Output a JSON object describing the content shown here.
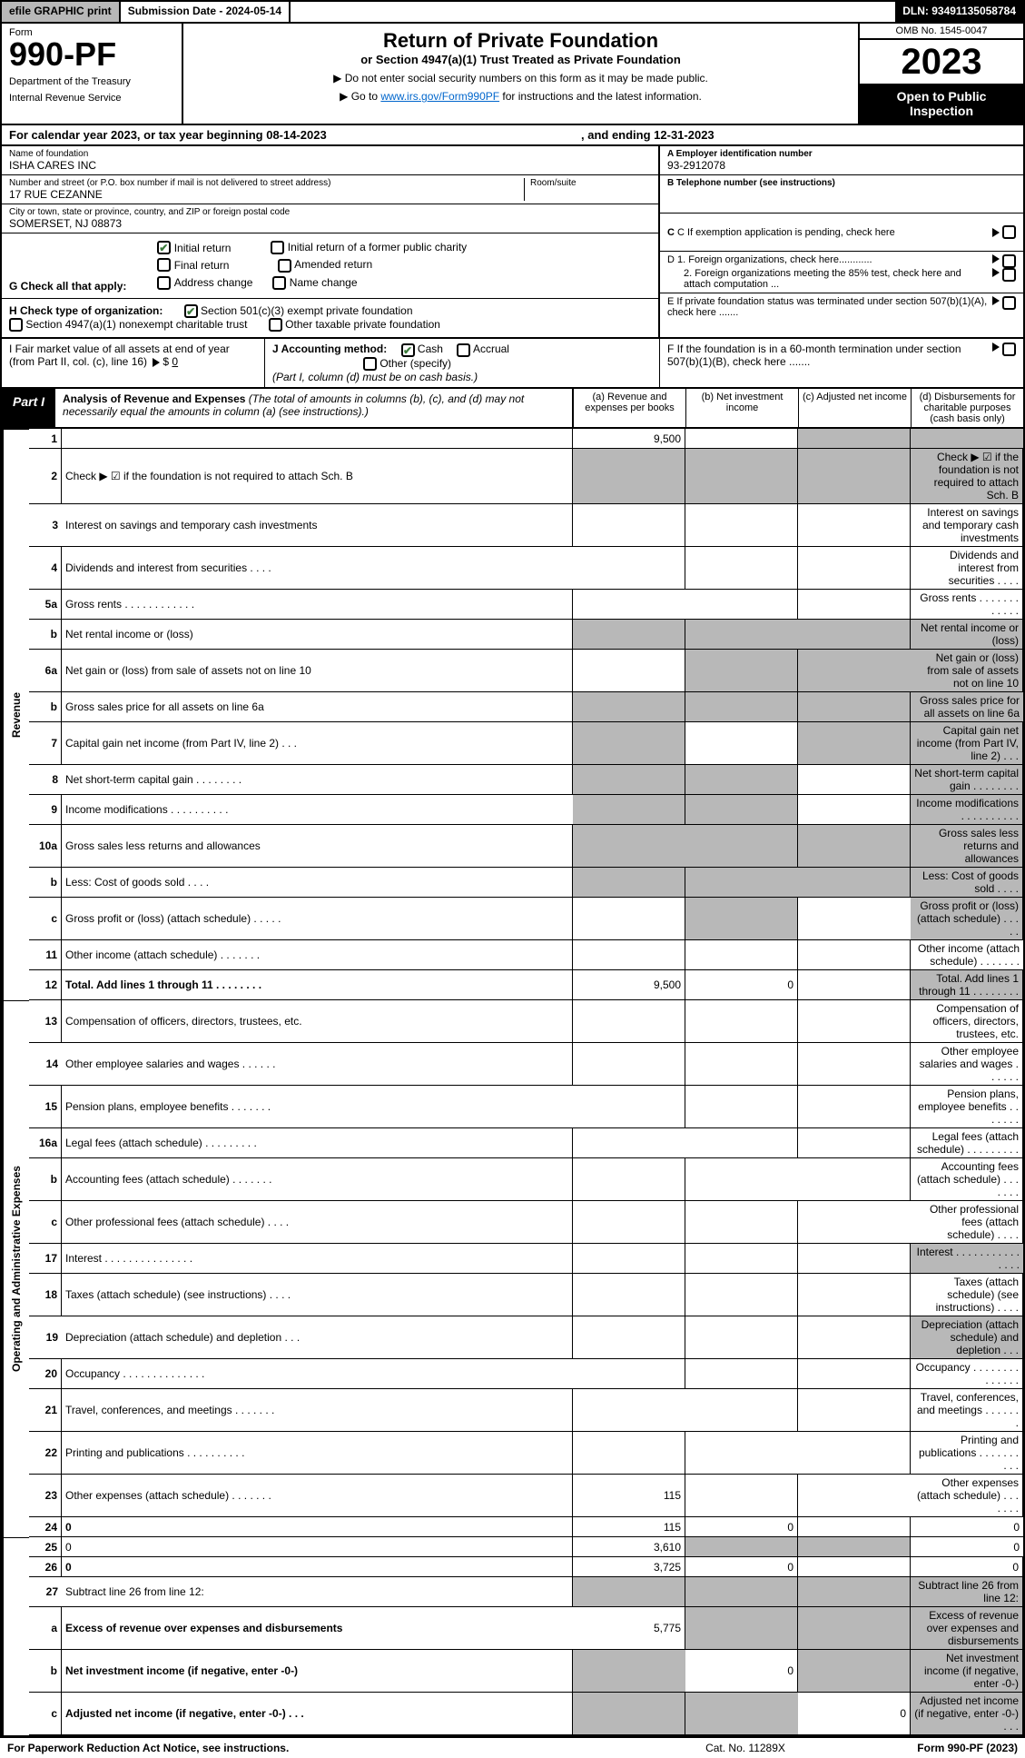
{
  "top": {
    "efile": "efile GRAPHIC print",
    "sub": "Submission Date - 2024-05-14",
    "dln": "DLN: 93491135058784"
  },
  "hdr": {
    "form": "Form",
    "num": "990-PF",
    "dept": "Department of the Treasury",
    "irs": "Internal Revenue Service",
    "title": "Return of Private Foundation",
    "sub": "or Section 4947(a)(1) Trust Treated as Private Foundation",
    "i1": "▶ Do not enter social security numbers on this form as it may be made public.",
    "i2_pre": "▶ Go to ",
    "i2_link": "www.irs.gov/Form990PF",
    "i2_post": " for instructions and the latest information.",
    "omb": "OMB No. 1545-0047",
    "year": "2023",
    "open": "Open to Public Inspection"
  },
  "period": {
    "a": "For calendar year 2023, or tax year beginning 08-14-2023",
    "b": ", and ending 12-31-2023"
  },
  "info": {
    "name_lbl": "Name of foundation",
    "name": "ISHA CARES INC",
    "addr_lbl": "Number and street (or P.O. box number if mail is not delivered to street address)",
    "addr": "17 RUE CEZANNE",
    "room_lbl": "Room/suite",
    "city_lbl": "City or town, state or province, country, and ZIP or foreign postal code",
    "city": "SOMERSET, NJ  08873",
    "ein_lbl": "A Employer identification number",
    "ein": "93-2912078",
    "tel_lbl": "B Telephone number (see instructions)",
    "c": "C If exemption application is pending, check here",
    "d1": "D 1. Foreign organizations, check here............",
    "d2": "2. Foreign organizations meeting the 85% test, check here and attach computation ...",
    "e": "E  If private foundation status was terminated under section 507(b)(1)(A), check here .......",
    "f": "F  If the foundation is in a 60-month termination under section 507(b)(1)(B), check here ......."
  },
  "g": {
    "lbl": "G Check all that apply:",
    "o1": "Initial return",
    "o2": "Initial return of a former public charity",
    "o3": "Final return",
    "o4": "Amended return",
    "o5": "Address change",
    "o6": "Name change"
  },
  "h": {
    "lbl": "H Check type of organization:",
    "o1": "Section 501(c)(3) exempt private foundation",
    "o2": "Section 4947(a)(1) nonexempt charitable trust",
    "o3": "Other taxable private foundation"
  },
  "i": {
    "lbl": "I Fair market value of all assets at end of year (from Part II, col. (c), line 16)",
    "val": "0"
  },
  "j": {
    "lbl": "J Accounting method:",
    "o1": "Cash",
    "o2": "Accrual",
    "o3": "Other (specify)",
    "note": "(Part I, column (d) must be on cash basis.)"
  },
  "part1": {
    "tag": "Part I",
    "title": "Analysis of Revenue and Expenses",
    "note": "(The total of amounts in columns (b), (c), and (d) may not necessarily equal the amounts in column (a) (see instructions).)",
    "ca": "(a)  Revenue and expenses per books",
    "cb": "(b)  Net investment income",
    "cc": "(c)  Adjusted net income",
    "cd": "(d)  Disbursements for charitable purposes (cash basis only)"
  },
  "rows": [
    {
      "n": "1",
      "d": "",
      "a": "9,500",
      "b": "",
      "c": "",
      "sa": false,
      "sb": false,
      "sc": true,
      "sd": true
    },
    {
      "n": "2",
      "d": "Check ▶ ☑ if the foundation is not required to attach Sch. B",
      "short": true,
      "sa": true,
      "sb": true,
      "sc": true,
      "sd": true
    },
    {
      "n": "3",
      "d": "Interest on savings and temporary cash investments"
    },
    {
      "n": "4",
      "d": "Dividends and interest from securities   .   .   .   ."
    },
    {
      "n": "5a",
      "d": "Gross rents   .   .   .   .   .   .   .   .   .   .   .   ."
    },
    {
      "n": "b",
      "d": "Net rental income or (loss)",
      "short": true,
      "sa": true,
      "sb": true,
      "sc": true,
      "sd": true
    },
    {
      "n": "6a",
      "d": "Net gain or (loss) from sale of assets not on line 10",
      "sb": true,
      "sc": true,
      "sd": true
    },
    {
      "n": "b",
      "d": "Gross sales price for all assets on line 6a",
      "short": true,
      "sa": true,
      "sb": true,
      "sc": true,
      "sd": true
    },
    {
      "n": "7",
      "d": "Capital gain net income (from Part IV, line 2)   .   .   .",
      "sa": true,
      "sc": true,
      "sd": true
    },
    {
      "n": "8",
      "d": "Net short-term capital gain  .   .   .   .   .   .   .   .",
      "sa": true,
      "sb": true,
      "sd": true
    },
    {
      "n": "9",
      "d": "Income modifications  .   .   .   .   .   .   .   .   .   .",
      "sa": true,
      "sb": true,
      "sd": true
    },
    {
      "n": "10a",
      "d": "Gross sales less returns and allowances",
      "short": true,
      "sa": true,
      "sb": true,
      "sc": true,
      "sd": true
    },
    {
      "n": "b",
      "d": "Less: Cost of goods sold   .   .   .   .",
      "short": true,
      "sa": true,
      "sb": true,
      "sc": true,
      "sd": true
    },
    {
      "n": "c",
      "d": "Gross profit or (loss) (attach schedule)   .   .   .   .   .",
      "sb": true,
      "sd": true
    },
    {
      "n": "11",
      "d": "Other income (attach schedule)   .   .   .   .   .   .   ."
    },
    {
      "n": "12",
      "d": "Total. Add lines 1 through 11   .   .   .   .   .   .   .   .",
      "bold": true,
      "a": "9,500",
      "b": "0",
      "sd": true
    },
    {
      "n": "13",
      "d": "Compensation of officers, directors, trustees, etc."
    },
    {
      "n": "14",
      "d": "Other employee salaries and wages   .   .   .   .   .   ."
    },
    {
      "n": "15",
      "d": "Pension plans, employee benefits   .   .   .   .   .   .   ."
    },
    {
      "n": "16a",
      "d": "Legal fees (attach schedule)  .   .   .   .   .   .   .   .   ."
    },
    {
      "n": "b",
      "d": "Accounting fees (attach schedule)   .   .   .   .   .   .   ."
    },
    {
      "n": "c",
      "d": "Other professional fees (attach schedule)   .   .   .   ."
    },
    {
      "n": "17",
      "d": "Interest  .   .   .   .   .   .   .   .   .   .   .   .   .   .   .",
      "sd": true
    },
    {
      "n": "18",
      "d": "Taxes (attach schedule) (see instructions)   .   .   .   ."
    },
    {
      "n": "19",
      "d": "Depreciation (attach schedule) and depletion   .   .   .",
      "sd": true
    },
    {
      "n": "20",
      "d": "Occupancy  .   .   .   .   .   .   .   .   .   .   .   .   .   ."
    },
    {
      "n": "21",
      "d": "Travel, conferences, and meetings   .   .   .   .   .   .   ."
    },
    {
      "n": "22",
      "d": "Printing and publications  .   .   .   .   .   .   .   .   .   ."
    },
    {
      "n": "23",
      "d": "Other expenses (attach schedule)   .   .   .   .   .   .   .",
      "a": "115"
    },
    {
      "n": "24",
      "d": "0",
      "bold": true,
      "a": "115",
      "b": "0"
    },
    {
      "n": "25",
      "d": "0",
      "a": "3,610",
      "sb": true,
      "sc": true
    },
    {
      "n": "26",
      "d": "0",
      "bold": true,
      "a": "3,725",
      "b": "0"
    },
    {
      "n": "27",
      "d": "Subtract line 26 from line 12:",
      "sa": true,
      "sb": true,
      "sc": true,
      "sd": true
    },
    {
      "n": "a",
      "d": "Excess of revenue over expenses and disbursements",
      "bold": true,
      "a": "5,775",
      "sb": true,
      "sc": true,
      "sd": true
    },
    {
      "n": "b",
      "d": "Net investment income (if negative, enter -0-)",
      "bold": true,
      "sa": true,
      "b": "0",
      "sc": true,
      "sd": true
    },
    {
      "n": "c",
      "d": "Adjusted net income (if negative, enter -0-)   .   .   .",
      "bold": true,
      "sa": true,
      "sb": true,
      "c": "0",
      "sd": true
    }
  ],
  "sides": {
    "rev": "Revenue",
    "exp": "Operating and Administrative Expenses"
  },
  "foot": {
    "a": "For Paperwork Reduction Act Notice, see instructions.",
    "b": "Cat. No. 11289X",
    "c": "Form 990-PF (2023)"
  }
}
